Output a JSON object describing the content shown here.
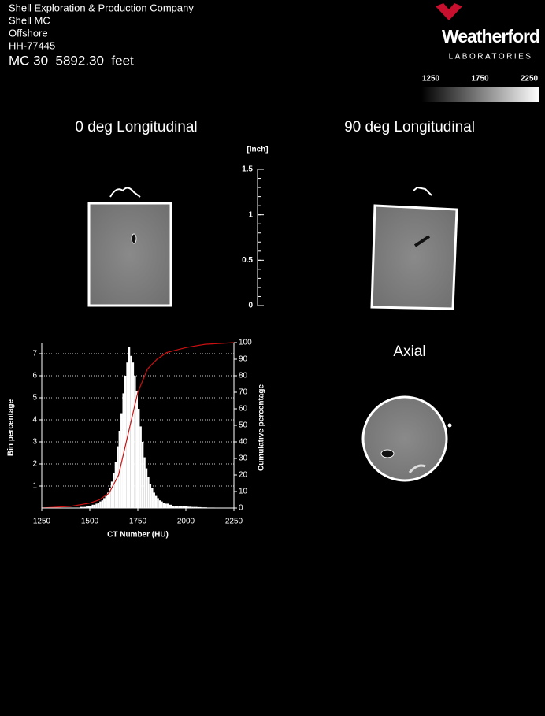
{
  "header": {
    "lines": [
      "Shell Exploration & Production Company",
      "Shell MC",
      "Offshore",
      "HH-77445"
    ],
    "depth": "MC 30  5892.30  feet"
  },
  "logo": {
    "name": "Weatherford",
    "sub": "LABORATORIES"
  },
  "colorbar": {
    "lim": [
      1250,
      2250
    ],
    "ticks": [
      1250,
      1750,
      2250
    ]
  },
  "images": {
    "left_title": "0 deg Longitudinal",
    "right_title": "90 deg Longitudinal",
    "axial_title": "Axial"
  },
  "scale": {
    "unit": "[inch]",
    "lim": [
      0,
      1.5
    ],
    "ticks": [
      0,
      0.5,
      1,
      1.5
    ]
  },
  "chart_data": {
    "type": "histogram",
    "color": "#ffffff",
    "bins": [
      1450,
      1460,
      1470,
      1480,
      1490,
      1500,
      1510,
      1520,
      1530,
      1540,
      1550,
      1560,
      1570,
      1580,
      1590,
      1600,
      1610,
      1620,
      1630,
      1640,
      1650,
      1660,
      1670,
      1680,
      1690,
      1700,
      1710,
      1720,
      1730,
      1740,
      1750,
      1760,
      1770,
      1780,
      1790,
      1800,
      1810,
      1820,
      1830,
      1840,
      1850,
      1860,
      1870,
      1880,
      1890,
      1900,
      1910,
      1920,
      1930,
      1940,
      1950,
      1960,
      1970,
      1980,
      1990,
      2000,
      2010,
      2020,
      2030,
      2040,
      2050,
      2060,
      2070,
      2080,
      2090,
      2100,
      2110,
      2120,
      2130,
      2140,
      2150
    ],
    "values": [
      0.05,
      0.05,
      0.05,
      0.1,
      0.1,
      0.1,
      0.15,
      0.15,
      0.2,
      0.25,
      0.3,
      0.35,
      0.45,
      0.55,
      0.7,
      0.9,
      1.2,
      1.6,
      2.1,
      2.8,
      3.5,
      4.3,
      5.2,
      6.0,
      6.6,
      7.3,
      6.9,
      6.6,
      6.0,
      5.3,
      4.5,
      3.7,
      3.0,
      2.3,
      1.8,
      1.4,
      1.1,
      0.9,
      0.7,
      0.55,
      0.45,
      0.35,
      0.3,
      0.25,
      0.2,
      0.2,
      0.15,
      0.15,
      0.1,
      0.1,
      0.1,
      0.1,
      0.1,
      0.08,
      0.08,
      0.08,
      0.06,
      0.06,
      0.05,
      0.05,
      0.05,
      0.04,
      0.04,
      0.03,
      0.03,
      0.03,
      0.02,
      0.02,
      0.02,
      0.02
    ],
    "cumulative": {
      "color": "#cc1111",
      "axis": "y2",
      "x": [
        1250,
        1400,
        1500,
        1550,
        1600,
        1650,
        1700,
        1750,
        1800,
        1850,
        1900,
        2000,
        2100,
        2250
      ],
      "values": [
        0,
        1,
        3,
        5,
        9,
        20,
        45,
        70,
        84,
        90,
        94,
        97,
        99,
        100
      ]
    },
    "xlabel": "CT Number (HU)",
    "ylabel": "Bin percentage",
    "y2label": "Cumulative percentage",
    "xlim": [
      1250,
      2250
    ],
    "xticks": [
      1250,
      1500,
      1750,
      2000,
      2250
    ],
    "ylim": [
      0,
      7.5
    ],
    "yticks": [
      1,
      2,
      3,
      4,
      5,
      6,
      7
    ],
    "y2lim": [
      0,
      100
    ],
    "y2ticks": [
      0,
      10,
      20,
      30,
      40,
      50,
      60,
      70,
      80,
      90,
      100
    ],
    "grid": true
  }
}
